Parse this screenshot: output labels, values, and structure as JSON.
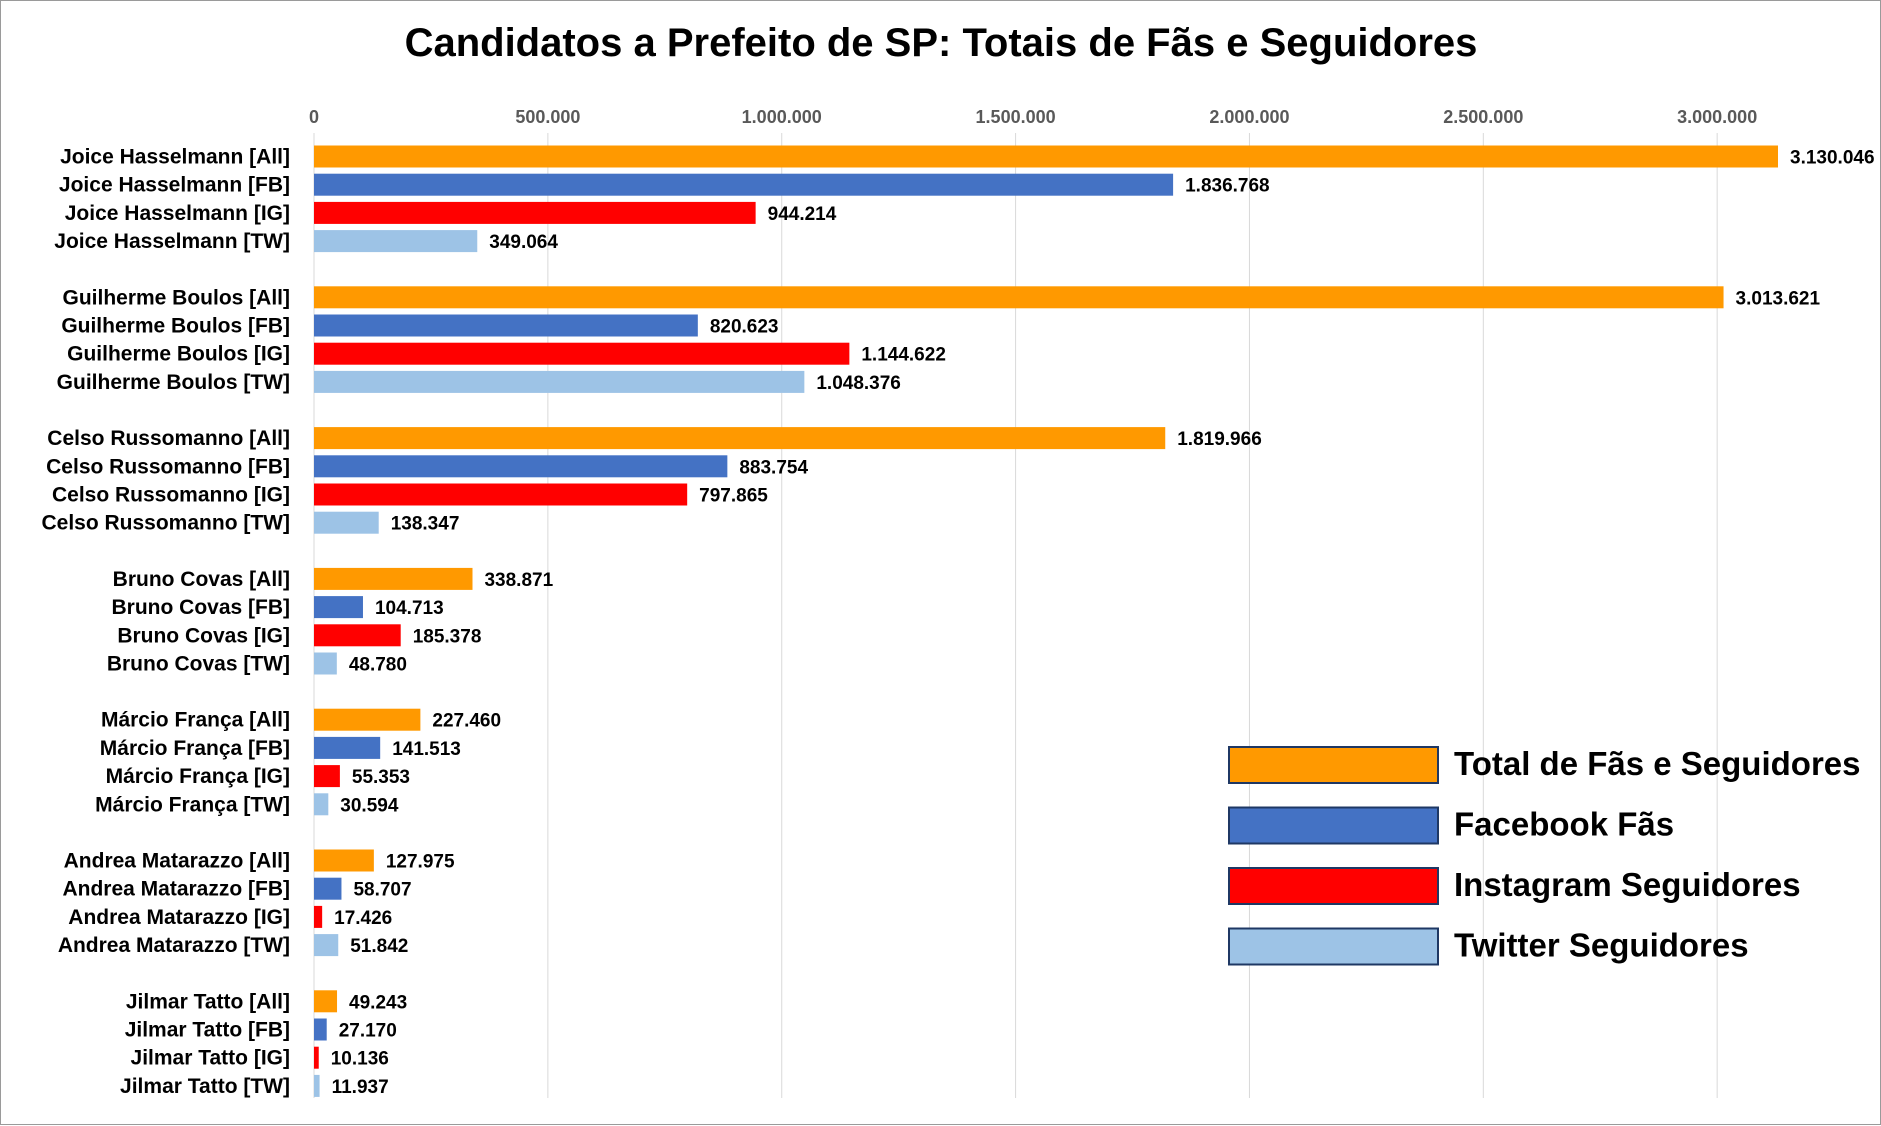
{
  "chart_data": {
    "type": "bar",
    "orientation": "horizontal",
    "title": "Candidatos a Prefeito de SP: Totais de Fãs e Seguidores",
    "xlabel": "",
    "ylabel": "",
    "xlim": [
      0,
      3130046
    ],
    "x_ticks": [
      0,
      500000,
      1000000,
      1500000,
      2000000,
      2500000,
      3000000
    ],
    "x_tick_labels": [
      "0",
      "500.000",
      "1.000.000",
      "1.500.000",
      "2.000.000",
      "2.500.000",
      "3.000.000"
    ],
    "x_axis_position": "top",
    "grid": true,
    "legend_position": "bottom-right",
    "series": [
      {
        "name": "Total de Fãs e Seguidores",
        "color": "#FF9900"
      },
      {
        "name": "Facebook Fãs",
        "color": "#4472C4"
      },
      {
        "name": "Instagram Seguidores",
        "color": "#FF0000"
      },
      {
        "name": "Twitter Seguidores",
        "color": "#9DC3E6"
      }
    ],
    "groups": [
      {
        "bars": [
          {
            "label": "Joice Hasselmann [All]",
            "value": 3130046,
            "value_label": "3.130.046",
            "series": 0
          },
          {
            "label": "Joice Hasselmann [FB]",
            "value": 1836768,
            "value_label": "1.836.768",
            "series": 1
          },
          {
            "label": "Joice Hasselmann [IG]",
            "value": 944214,
            "value_label": "944.214",
            "series": 2
          },
          {
            "label": "Joice Hasselmann [TW]",
            "value": 349064,
            "value_label": "349.064",
            "series": 3
          }
        ]
      },
      {
        "bars": [
          {
            "label": "Guilherme Boulos [All]",
            "value": 3013621,
            "value_label": "3.013.621",
            "series": 0
          },
          {
            "label": "Guilherme Boulos [FB]",
            "value": 820623,
            "value_label": "820.623",
            "series": 1
          },
          {
            "label": "Guilherme Boulos [IG]",
            "value": 1144622,
            "value_label": "1.144.622",
            "series": 2
          },
          {
            "label": "Guilherme Boulos [TW]",
            "value": 1048376,
            "value_label": "1.048.376",
            "series": 3
          }
        ]
      },
      {
        "bars": [
          {
            "label": "Celso Russomanno [All]",
            "value": 1819966,
            "value_label": "1.819.966",
            "series": 0
          },
          {
            "label": "Celso Russomanno [FB]",
            "value": 883754,
            "value_label": "883.754",
            "series": 1
          },
          {
            "label": "Celso Russomanno [IG]",
            "value": 797865,
            "value_label": "797.865",
            "series": 2
          },
          {
            "label": "Celso Russomanno [TW]",
            "value": 138347,
            "value_label": "138.347",
            "series": 3
          }
        ]
      },
      {
        "bars": [
          {
            "label": "Bruno Covas [All]",
            "value": 338871,
            "value_label": "338.871",
            "series": 0
          },
          {
            "label": "Bruno Covas [FB]",
            "value": 104713,
            "value_label": "104.713",
            "series": 1
          },
          {
            "label": "Bruno Covas [IG]",
            "value": 185378,
            "value_label": "185.378",
            "series": 2
          },
          {
            "label": "Bruno Covas [TW]",
            "value": 48780,
            "value_label": "48.780",
            "series": 3
          }
        ]
      },
      {
        "bars": [
          {
            "label": "Márcio França [All]",
            "value": 227460,
            "value_label": "227.460",
            "series": 0
          },
          {
            "label": "Márcio França [FB]",
            "value": 141513,
            "value_label": "141.513",
            "series": 1
          },
          {
            "label": "Márcio França [IG]",
            "value": 55353,
            "value_label": "55.353",
            "series": 2
          },
          {
            "label": "Márcio França [TW]",
            "value": 30594,
            "value_label": "30.594",
            "series": 3
          }
        ]
      },
      {
        "bars": [
          {
            "label": "Andrea Matarazzo [All]",
            "value": 127975,
            "value_label": "127.975",
            "series": 0
          },
          {
            "label": "Andrea Matarazzo [FB]",
            "value": 58707,
            "value_label": "58.707",
            "series": 1
          },
          {
            "label": "Andrea Matarazzo [IG]",
            "value": 17426,
            "value_label": "17.426",
            "series": 2
          },
          {
            "label": "Andrea Matarazzo [TW]",
            "value": 51842,
            "value_label": "51.842",
            "series": 3
          }
        ]
      },
      {
        "bars": [
          {
            "label": "Jilmar Tatto [All]",
            "value": 49243,
            "value_label": "49.243",
            "series": 0
          },
          {
            "label": "Jilmar Tatto [FB]",
            "value": 27170,
            "value_label": "27.170",
            "series": 1
          },
          {
            "label": "Jilmar Tatto [IG]",
            "value": 10136,
            "value_label": "10.136",
            "series": 2
          },
          {
            "label": "Jilmar Tatto [TW]",
            "value": 11937,
            "value_label": "11.937",
            "series": 3
          }
        ]
      }
    ]
  }
}
